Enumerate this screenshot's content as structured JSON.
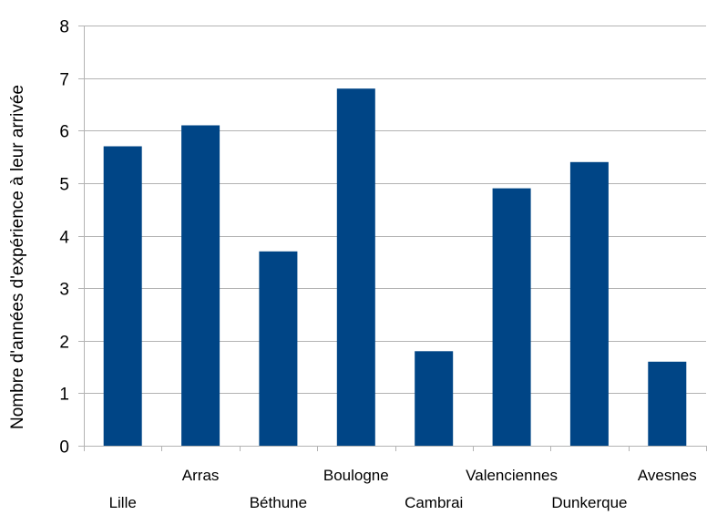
{
  "chart_data": {
    "type": "bar",
    "title": "",
    "xlabel": "",
    "ylabel": "Nombre d'années d'expérience à leur arrivée",
    "categories": [
      "Lille",
      "Arras",
      "Béthune",
      "Boulogne",
      "Cambrai",
      "Valenciennes",
      "Dunkerque",
      "Avesnes"
    ],
    "values": [
      5.7,
      6.1,
      3.7,
      6.8,
      1.8,
      4.9,
      5.4,
      1.6
    ],
    "ylim": [
      0,
      8
    ],
    "yticks": [
      0,
      1,
      2,
      3,
      4,
      5,
      6,
      7,
      8
    ],
    "grid": true,
    "legend": "none",
    "bar_color": "#004586",
    "grid_color": "#b3b3b3"
  }
}
